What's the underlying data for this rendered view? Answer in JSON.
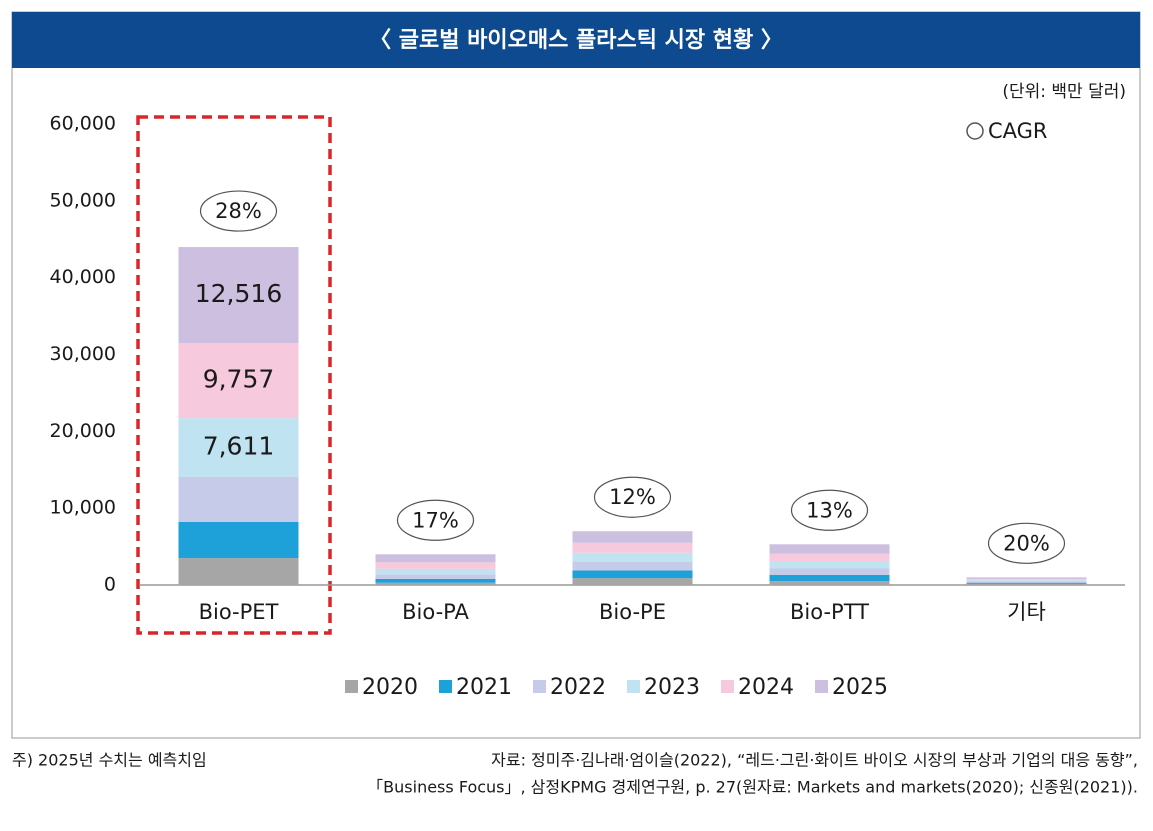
{
  "chart_data": {
    "type": "stacked_bar",
    "title": "〈 글로벌 바이오매스 플라스틱 시장 현황 〉",
    "unit_note": "(단위: 백만 달러)",
    "cagr_legend": "CAGR",
    "categories": [
      "Bio-PET",
      "Bio-PA",
      "Bio-PE",
      "Bio-PTT",
      "기타"
    ],
    "cagr_labels": [
      "28%",
      "17%",
      "12%",
      "13%",
      "20%"
    ],
    "series": [
      {
        "name": "2020",
        "color": "#a6a6a6",
        "values": [
          3500,
          300,
          900,
          500,
          150
        ]
      },
      {
        "name": "2021",
        "color": "#1ea0d8",
        "values": [
          4700,
          500,
          1000,
          800,
          150
        ]
      },
      {
        "name": "2022",
        "color": "#c5cbe8",
        "values": [
          5900,
          600,
          1100,
          850,
          150
        ]
      },
      {
        "name": "2023",
        "color": "#bfe3f0",
        "values": [
          7611,
          700,
          1200,
          950,
          170
        ],
        "value_labels": [
          "7,611",
          null,
          null,
          null,
          null
        ]
      },
      {
        "name": "2024",
        "color": "#f7c9dc",
        "values": [
          9757,
          850,
          1300,
          1000,
          180
        ],
        "value_labels": [
          "9,757",
          null,
          null,
          null,
          null
        ]
      },
      {
        "name": "2025",
        "color": "#cdbfe0",
        "values": [
          12516,
          1050,
          1500,
          1200,
          200
        ],
        "value_labels": [
          "12,516",
          null,
          null,
          null,
          null
        ]
      }
    ],
    "ylim": [
      0,
      60000
    ],
    "yticks": [
      0,
      {
        "value": 10000,
        "label": "10,000"
      },
      {
        "value": 20000,
        "label": "20,000"
      },
      {
        "value": 30000,
        "label": "30,000"
      },
      {
        "value": 40000,
        "label": "40,000"
      },
      {
        "value": 50000,
        "label": "50,000"
      },
      {
        "value": 60000,
        "label": "60,000"
      }
    ],
    "legend": "bottom",
    "footnote": "주) 2025년 수치는 예측치임",
    "source": [
      "자료: 정미주·김나래·엄이슬(2022), “레드·그린·화이트 바이오 시장의 부상과 기업의 대응 동향”,",
      "「Business Focus」, 삼정KPMG 경제연구원, p. 27(원자료: Markets and markets(2020); 신종원(2021))."
    ]
  }
}
